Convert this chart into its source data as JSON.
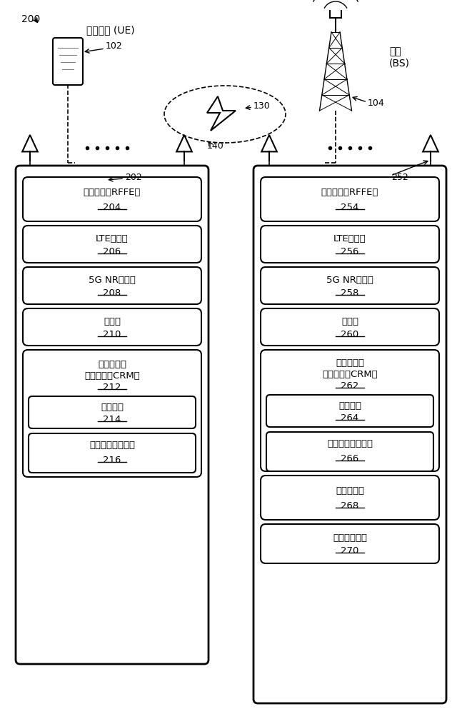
{
  "bg_color": "#ffffff",
  "label_200": "200",
  "label_ue": "用户设备 (UE)",
  "label_102": "102",
  "label_130": "130",
  "label_140": "140",
  "label_bs": "基站\n(BS)",
  "label_104": "104",
  "label_202": "202",
  "label_252": "252",
  "ue_boxes": [
    {
      "text": "射频前端（RFFE）\n204",
      "number": "204"
    },
    {
      "text": "LTE收发器\n206",
      "number": "206"
    },
    {
      "text": "5G NR收发器\n208",
      "number": "208"
    },
    {
      "text": "处理器\n210",
      "number": "210"
    },
    {
      "text": "计算机可读\n存储介质（CRM）\n212",
      "number": "212"
    },
    {
      "text": "设备数据\n214",
      "number": "214"
    },
    {
      "text": "天线模块热管理器\n216",
      "number": "216"
    }
  ],
  "bs_boxes": [
    {
      "text": "射频前端（RFFE）\n254",
      "number": "254"
    },
    {
      "text": "LTE收发器\n256",
      "number": "256"
    },
    {
      "text": "5G NR收发器\n258",
      "number": "258"
    },
    {
      "text": "处理器\n260",
      "number": "260"
    },
    {
      "text": "计算机可读\n存储介质（CRM）\n262",
      "number": "262"
    },
    {
      "text": "设备数据\n264",
      "number": "264"
    },
    {
      "text": "天线模块热管理器\n266",
      "number": "266"
    },
    {
      "text": "基站间接口\n268",
      "number": "268"
    },
    {
      "text": "核心网络接口\n270",
      "number": "270"
    }
  ]
}
